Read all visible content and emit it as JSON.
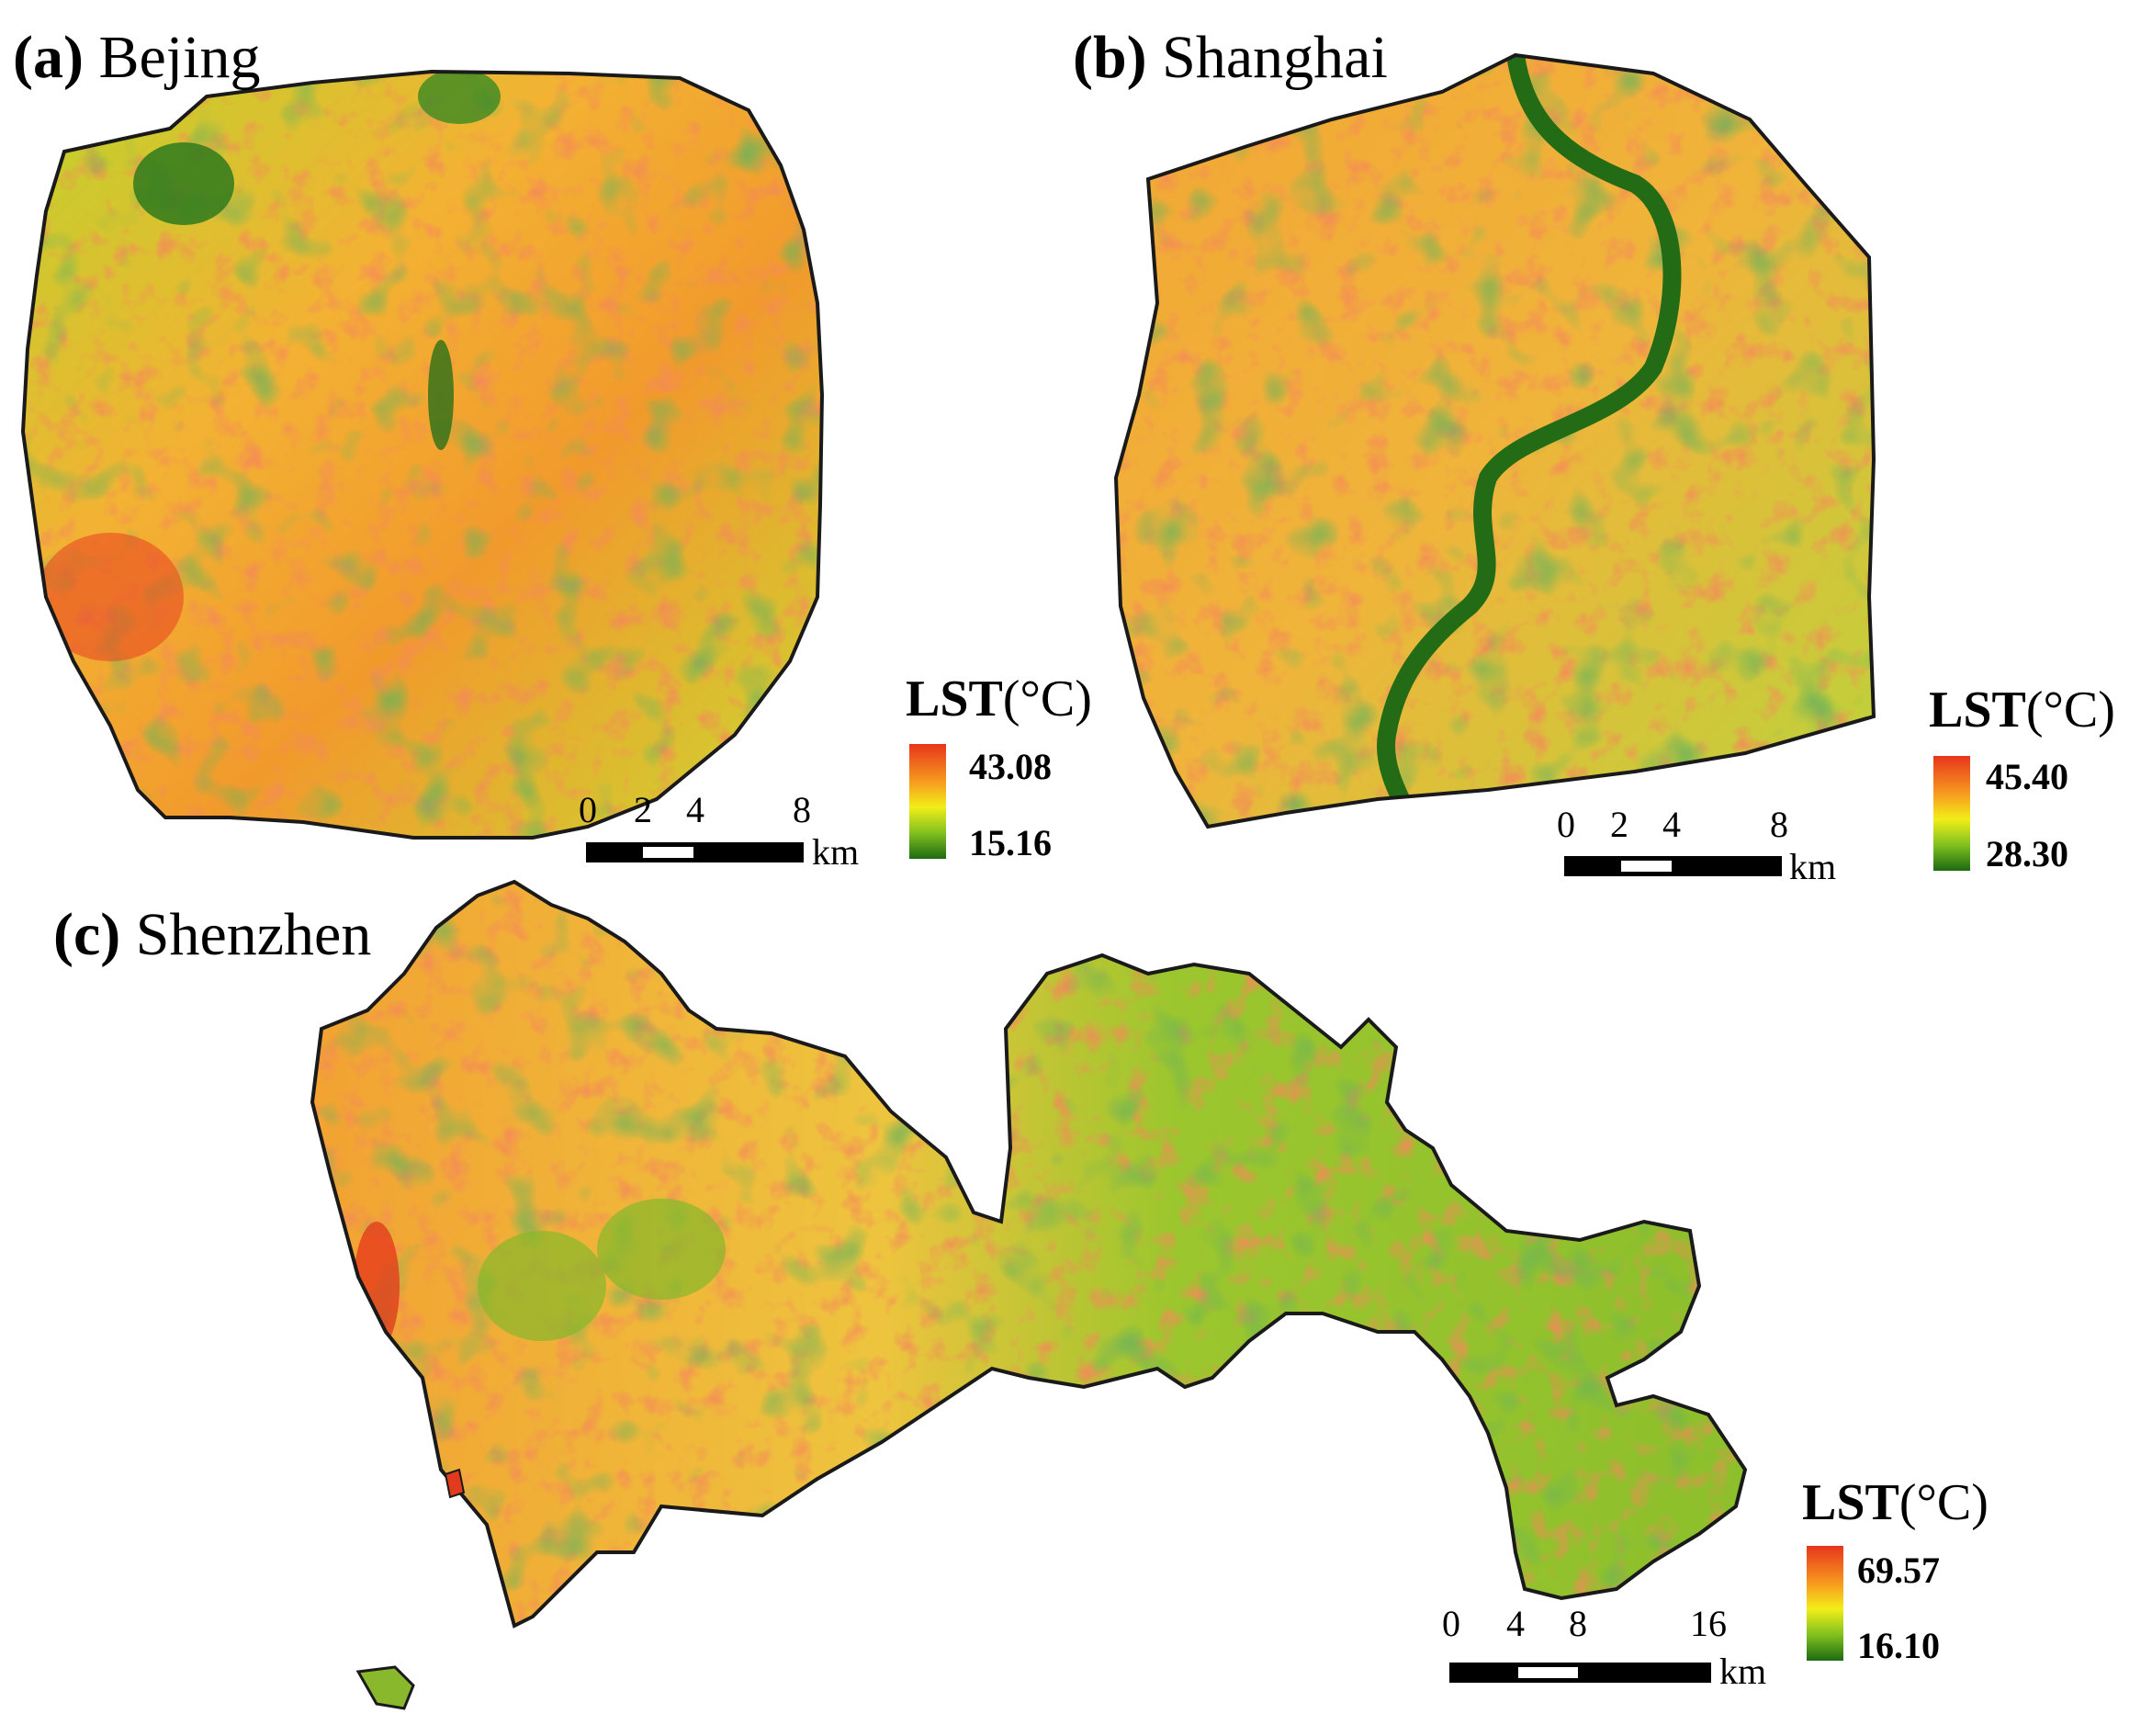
{
  "panels": [
    {
      "id": "a",
      "letter": "(a)",
      "name": "Bejing",
      "legend": {
        "title": "LST",
        "unit": "(°C)",
        "max": "43.08",
        "min": "15.16"
      },
      "scalebar": {
        "ticks": [
          "0",
          "2",
          "4",
          "8"
        ],
        "unit": "km"
      }
    },
    {
      "id": "b",
      "letter": "(b)",
      "name": "Shanghai",
      "legend": {
        "title": "LST",
        "unit": "(°C)",
        "max": "45.40",
        "min": "28.30"
      },
      "scalebar": {
        "ticks": [
          "0",
          "2",
          "4",
          "8"
        ],
        "unit": "km"
      }
    },
    {
      "id": "c",
      "letter": "(c)",
      "name": "Shenzhen",
      "legend": {
        "title": "LST",
        "unit": "(°C)",
        "max": "69.57",
        "min": "16.10"
      },
      "scalebar": {
        "ticks": [
          "0",
          "4",
          "8",
          "16"
        ],
        "unit": "km"
      }
    }
  ],
  "colors": {
    "hot": "#e8351c",
    "warm": "#f7a21e",
    "mid": "#f2ee18",
    "cool": "#7fbf1f",
    "cold": "#1d6a12",
    "outline": "#1a1a1a"
  }
}
